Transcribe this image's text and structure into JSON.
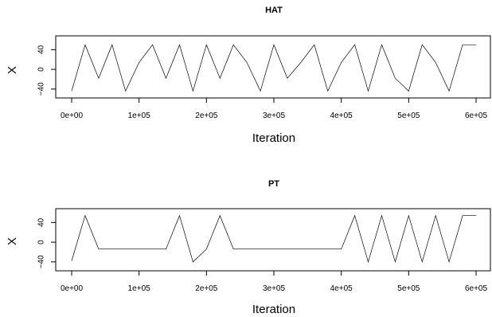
{
  "chart_data": [
    {
      "type": "line",
      "title": "HAT",
      "xlabel": "Iteration",
      "ylabel": "X",
      "xlim": [
        0,
        600000
      ],
      "ylim": [
        -50,
        60
      ],
      "xticks": [
        "0e+00",
        "1e+05",
        "2e+05",
        "3e+05",
        "4e+05",
        "5e+05",
        "6e+05"
      ],
      "yticks": [
        "−40",
        "0",
        "40"
      ],
      "series": [
        {
          "x": [
            0,
            20000,
            40000,
            60000,
            80000,
            100000,
            120000,
            140000,
            160000,
            180000,
            200000,
            220000,
            240000,
            260000,
            280000,
            300000,
            320000,
            340000,
            360000,
            380000,
            400000,
            420000,
            440000,
            460000,
            480000,
            500000,
            520000,
            540000,
            560000,
            580000,
            600000
          ],
          "values": [
            -44,
            50,
            -18,
            50,
            -44,
            14,
            50,
            -18,
            50,
            -44,
            50,
            -18,
            50,
            14,
            -44,
            50,
            -18,
            14,
            50,
            -44,
            14,
            50,
            -44,
            50,
            -18,
            -44,
            50,
            14,
            -44,
            50,
            50
          ]
        }
      ]
    },
    {
      "type": "line",
      "title": "PT",
      "xlabel": "Iteration",
      "ylabel": "X",
      "xlim": [
        0,
        600000
      ],
      "ylim": [
        -50,
        60
      ],
      "xticks": [
        "0e+00",
        "1e+05",
        "2e+05",
        "3e+05",
        "4e+05",
        "5e+05",
        "6e+05"
      ],
      "yticks": [
        "−40",
        "0",
        "40"
      ],
      "series": [
        {
          "x": [
            0,
            20000,
            40000,
            60000,
            80000,
            100000,
            120000,
            140000,
            160000,
            180000,
            200000,
            220000,
            240000,
            260000,
            280000,
            300000,
            320000,
            340000,
            360000,
            380000,
            400000,
            420000,
            440000,
            460000,
            480000,
            500000,
            520000,
            540000,
            560000,
            580000,
            600000
          ],
          "values": [
            -38,
            54,
            -14,
            -14,
            -14,
            -14,
            -14,
            -14,
            54,
            -40,
            -14,
            54,
            -14,
            -14,
            -14,
            -14,
            -14,
            -14,
            -14,
            -14,
            -14,
            54,
            -40,
            54,
            -40,
            54,
            -40,
            54,
            -40,
            54,
            54
          ]
        }
      ]
    }
  ]
}
